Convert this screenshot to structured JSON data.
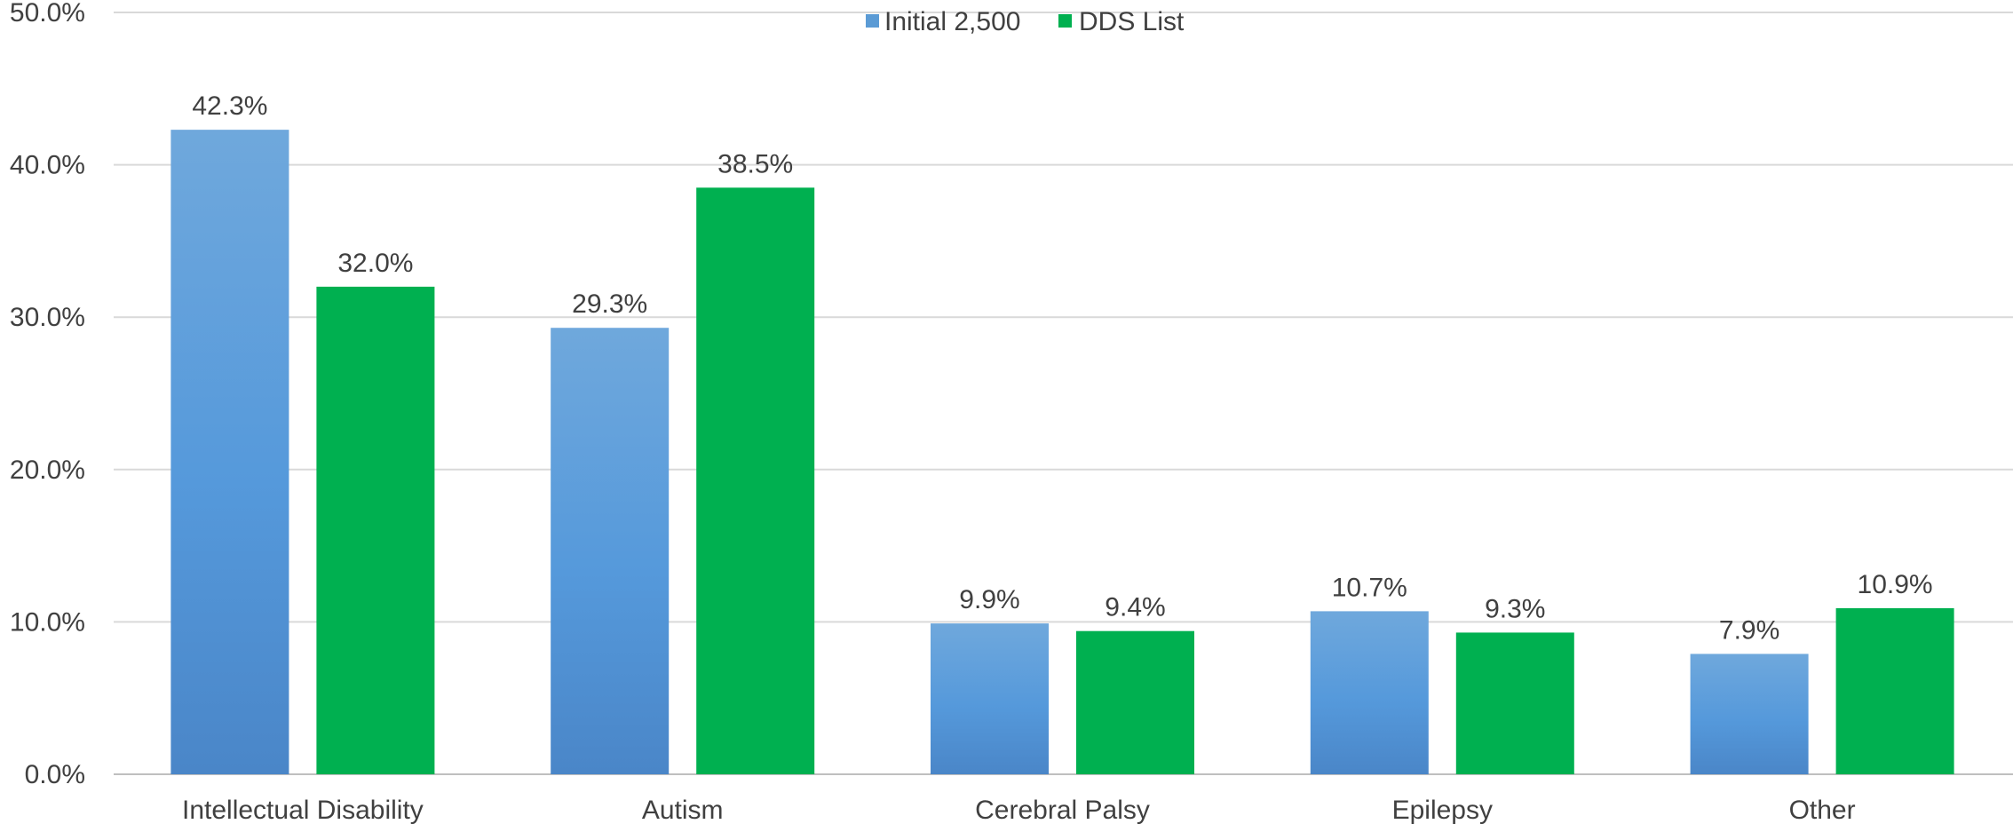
{
  "chart_data": {
    "type": "bar",
    "categories": [
      "Intellectual Disability",
      "Autism",
      "Cerebral Palsy",
      "Epilepsy",
      "Other"
    ],
    "series": [
      {
        "name": "Initial 2,500",
        "values": [
          42.3,
          29.3,
          9.9,
          10.7,
          7.9
        ],
        "labels": [
          "42.3%",
          "29.3%",
          "9.9%",
          "10.7%",
          "7.9%"
        ],
        "color": "#5b9bd5"
      },
      {
        "name": "DDS List",
        "values": [
          32.0,
          38.5,
          9.4,
          9.3,
          10.9
        ],
        "labels": [
          "32.0%",
          "38.5%",
          "9.4%",
          "9.3%",
          "10.9%"
        ],
        "color": "#00b050"
      }
    ],
    "y_ticks": [
      "0.0%",
      "10.0%",
      "20.0%",
      "30.0%",
      "40.0%",
      "50.0%"
    ],
    "ylim": [
      0,
      50
    ],
    "grid": true,
    "legend_position": "top-center"
  }
}
